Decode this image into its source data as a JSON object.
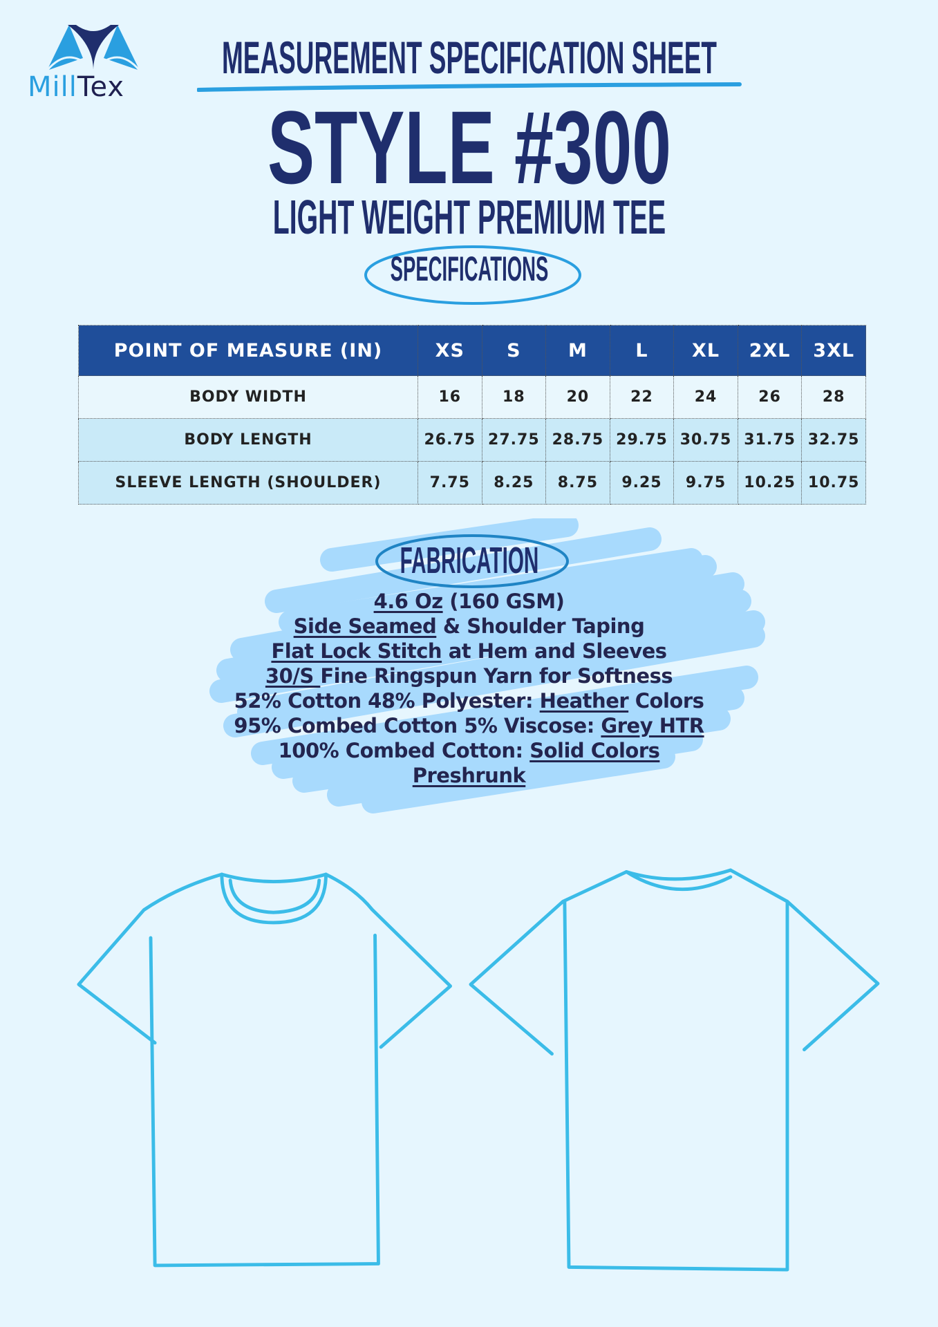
{
  "brand": {
    "logo_text_part1": "Mill",
    "logo_text_part2": "Tex",
    "colors": {
      "light": "#2a9fe0",
      "dark": "#1f2e6d"
    }
  },
  "header": {
    "sheet_title": "MEASUREMENT SPECIFICATION SHEET",
    "style_title": "STYLE #300",
    "style_subtitle": "LIGHT WEIGHT PREMIUM TEE",
    "section_label": "SPECIFICATIONS"
  },
  "table": {
    "columns": [
      "POINT OF MEASURE (IN)",
      "XS",
      "S",
      "M",
      "L",
      "XL",
      "2XL",
      "3XL"
    ],
    "rows": [
      [
        "BODY WIDTH",
        "16",
        "18",
        "20",
        "22",
        "24",
        "26",
        "28"
      ],
      [
        "BODY LENGTH",
        "26.75",
        "27.75",
        "28.75",
        "29.75",
        "30.75",
        "31.75",
        "32.75"
      ],
      [
        "SLEEVE LENGTH (SHOULDER)",
        "7.75",
        "8.25",
        "8.75",
        "9.25",
        "9.75",
        "10.25",
        "10.75"
      ]
    ]
  },
  "fabrication": {
    "label": "FABRICATION",
    "lines": [
      [
        {
          "text": "4.6 Oz",
          "u": true
        },
        {
          "text": " (160 GSM)",
          "u": false
        }
      ],
      [
        {
          "text": "Side Seamed",
          "u": true
        },
        {
          "text": " & Shoulder Taping",
          "u": false
        }
      ],
      [
        {
          "text": "Flat Lock Stitch",
          "u": true
        },
        {
          "text": " at Hem and Sleeves",
          "u": false
        }
      ],
      [
        {
          "text": "30/S ",
          "u": true
        },
        {
          "text": "Fine Ringspun Yarn for Softness",
          "u": false
        }
      ],
      [
        {
          "text": "52% Cotton 48% Polyester: ",
          "u": false
        },
        {
          "text": "Heather",
          "u": true
        },
        {
          "text": " Colors",
          "u": false
        }
      ],
      [
        {
          "text": "95% Combed Cotton 5% Viscose: ",
          "u": false
        },
        {
          "text": "Grey HTR",
          "u": true
        }
      ],
      [
        {
          "text": "100% Combed Cotton: ",
          "u": false
        },
        {
          "text": "Solid Colors",
          "u": true
        }
      ],
      [
        {
          "text": "Preshrunk",
          "u": true
        }
      ]
    ]
  },
  "illustrations": {
    "front": "tshirt-front-outline",
    "back": "tshirt-back-outline",
    "line_color": "#3bbce8"
  },
  "colors": {
    "background": "#e6f6fe",
    "navy": "#1f2e6d",
    "table_header": "#1f4e9a",
    "row_alt": "#c9eaf8",
    "blob": "#a8dafd",
    "accent": "#2a9fe0"
  }
}
